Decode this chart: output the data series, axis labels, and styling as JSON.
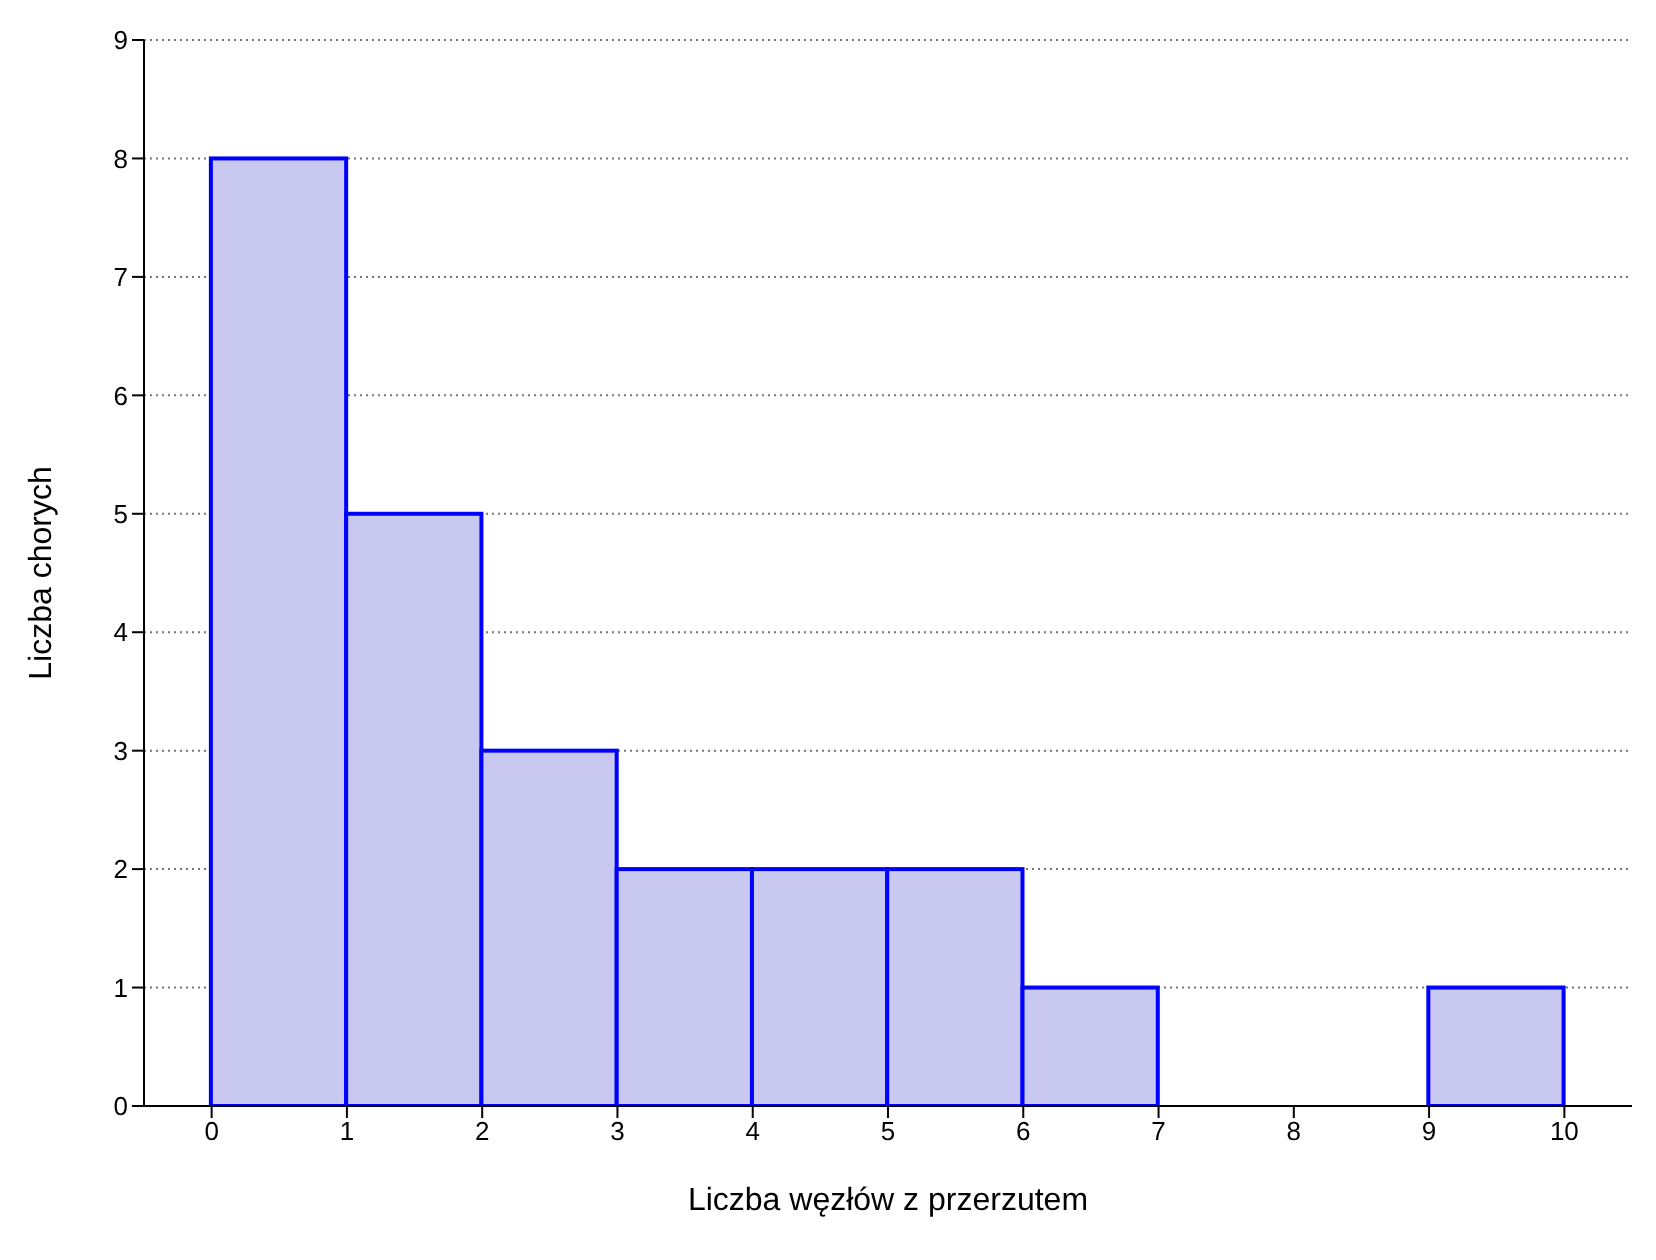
{
  "chart_data": {
    "type": "histogram",
    "xlabel": "Liczba węzłów z przerzutem",
    "ylabel": "Liczba chorych",
    "bins": [
      0,
      1,
      2,
      3,
      4,
      5,
      6,
      7,
      8,
      9,
      10
    ],
    "values": [
      8,
      5,
      3,
      2,
      2,
      2,
      1,
      0,
      0,
      1
    ],
    "color": "#c8c8f0",
    "xlim": [
      -0.5,
      10.5
    ],
    "xticks": [
      0,
      1,
      2,
      3,
      4,
      5,
      6,
      7,
      8,
      9,
      10
    ],
    "ylim": [
      0,
      9
    ],
    "yticks": [
      0,
      1,
      2,
      3,
      4,
      5,
      6,
      7,
      8,
      9
    ],
    "grid": "y"
  }
}
